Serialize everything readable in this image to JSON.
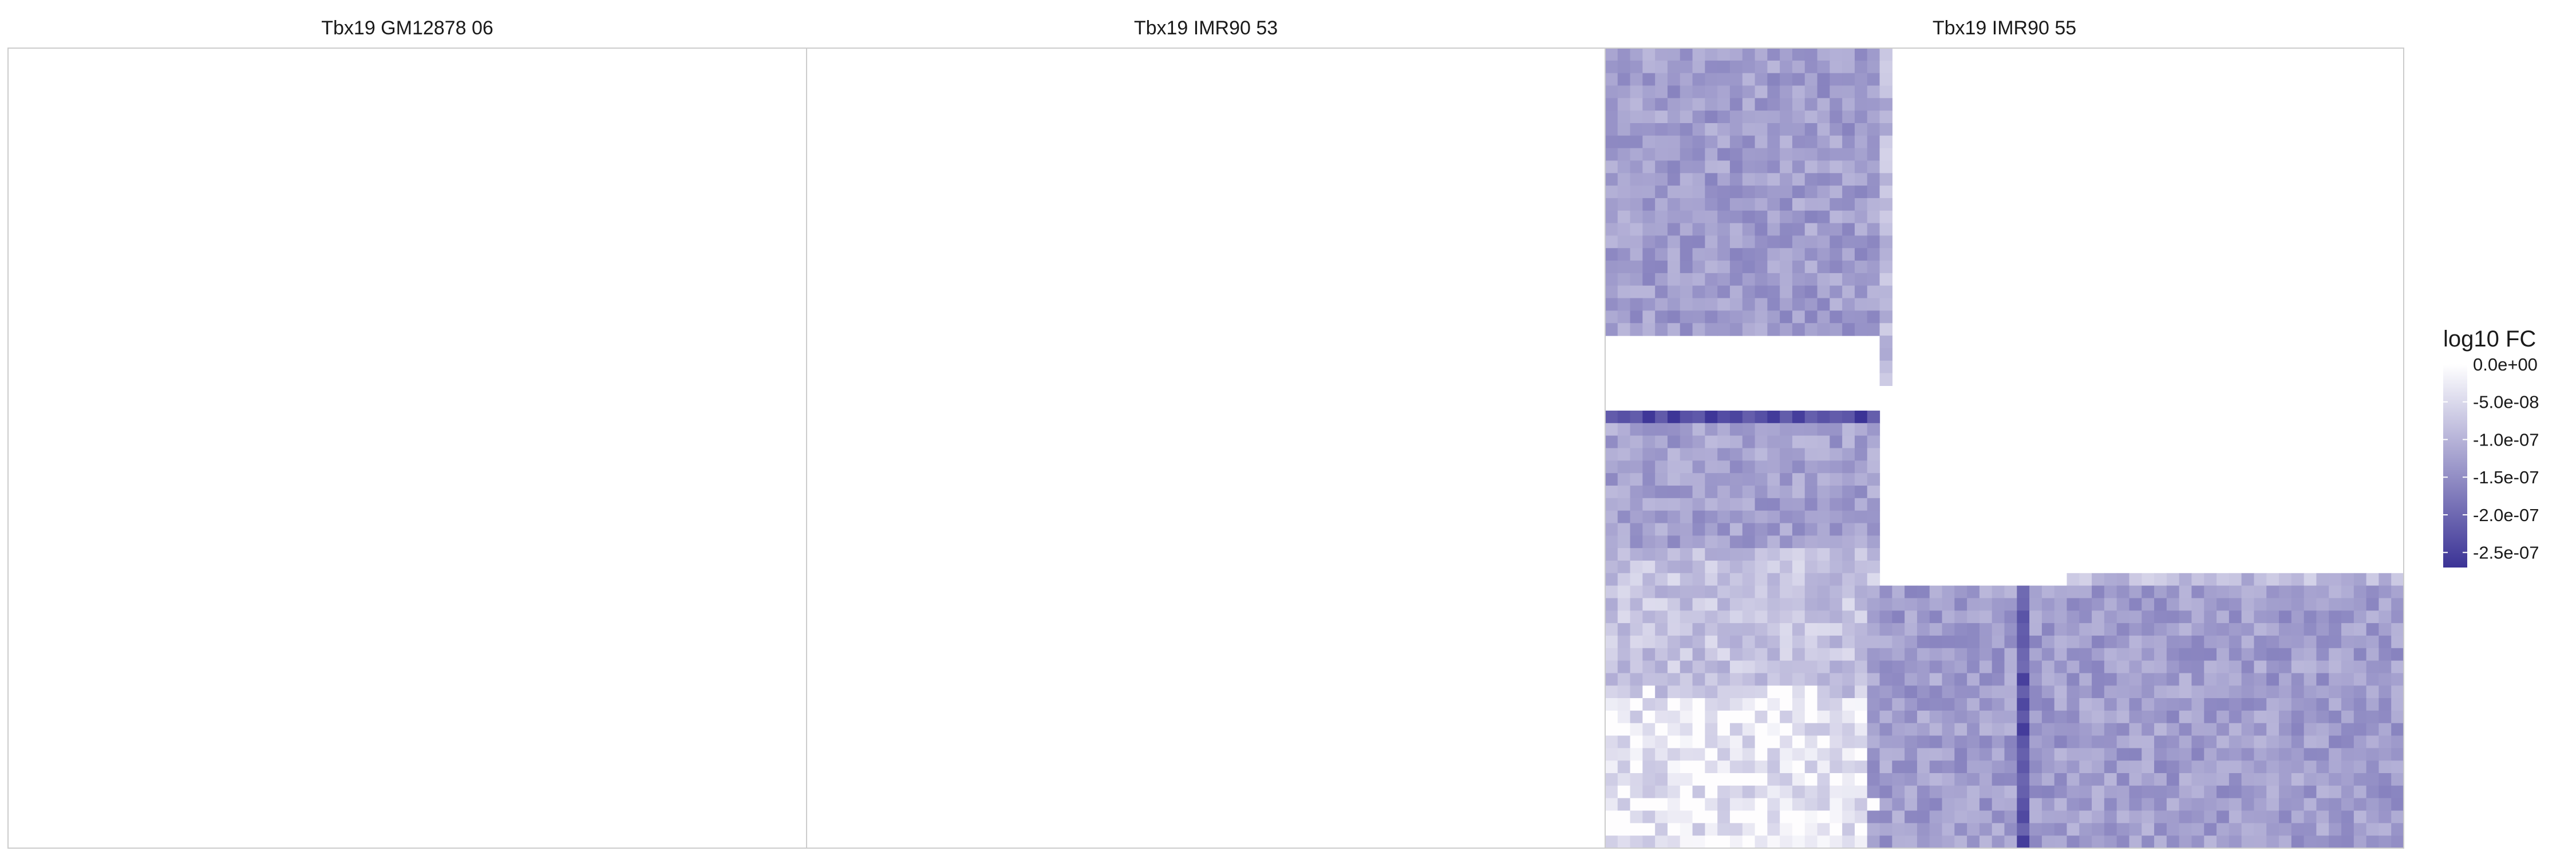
{
  "chart_data": {
    "type": "heatmap",
    "panels": [
      {
        "title": "Tbx19 GM12878 06",
        "has_data": false
      },
      {
        "title": "Tbx19 IMR90 53",
        "has_data": false
      },
      {
        "title": "Tbx19 IMR90 55",
        "has_data": true
      }
    ],
    "panel_grid_bins": 64,
    "legend": {
      "title": "log10 FC",
      "ticks": [
        "0.0e+00",
        "-5.0e-08",
        "-1.0e-07",
        "-1.5e-07",
        "-2.0e-07",
        "-2.5e-07"
      ],
      "tick_values": [
        0,
        -5e-08,
        -1e-07,
        -1.5e-07,
        -2e-07,
        -2.5e-07
      ],
      "range": [
        -2.7e-07,
        0
      ],
      "placement": "right"
    },
    "colors": {
      "low": "#3b3396",
      "high": "#ffffff",
      "panel_border": "#cccccc",
      "title_text": "#1a1a1a"
    },
    "value_regions": [
      {
        "rows": [
          0,
          22
        ],
        "cols": [
          0,
          21
        ],
        "mean": -1.3e-07
      },
      {
        "rows": [
          0,
          26
        ],
        "cols": [
          22,
          22
        ],
        "mean": -9e-08
      },
      {
        "rows": [
          29,
          29
        ],
        "cols": [
          0,
          21
        ],
        "mean": -2.4e-07
      },
      {
        "rows": [
          30,
          39
        ],
        "cols": [
          0,
          21
        ],
        "mean": -1.25e-07
      },
      {
        "rows": [
          40,
          51
        ],
        "cols": [
          0,
          21
        ],
        "mean": -8e-08
      },
      {
        "rows": [
          52,
          63
        ],
        "cols": [
          0,
          21
        ],
        "mean": -4.5e-08
      },
      {
        "rows": [
          42,
          42
        ],
        "cols": [
          37,
          63
        ],
        "mean": -9e-08
      },
      {
        "rows": [
          43,
          63
        ],
        "cols": [
          21,
          63
        ],
        "mean": -1.3e-07
      },
      {
        "rows": [
          43,
          63
        ],
        "cols": [
          33,
          33
        ],
        "mean": -2.3e-07
      }
    ]
  }
}
